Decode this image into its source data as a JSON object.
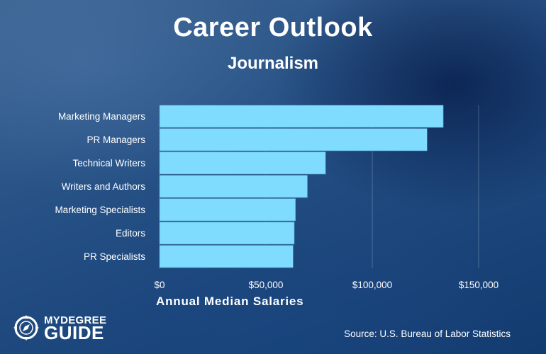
{
  "header": {
    "title": "Career Outlook",
    "subtitle": "Journalism"
  },
  "chart_data": {
    "type": "bar",
    "orientation": "horizontal",
    "title": "Career Outlook",
    "subtitle": "Journalism",
    "xlabel": "Annual Median Salaries",
    "ylabel": "",
    "categories": [
      "Marketing Managers",
      "PR Managers",
      "Technical Writers",
      "Writers and Authors",
      "Marketing Specialists",
      "Editors",
      "PR Specialists"
    ],
    "values": [
      133380,
      125780,
      78060,
      69510,
      63920,
      63350,
      62800
    ],
    "xlim": [
      0,
      150000
    ],
    "ticks": [
      0,
      50000,
      100000,
      150000
    ],
    "tick_labels": [
      "$0",
      "$50,000",
      "$100,000",
      "$150,000"
    ],
    "grid": true,
    "bar_color": "#7fdcff"
  },
  "footer": {
    "logo_top": "MYDEGREE",
    "logo_bottom": "GUIDE",
    "source": "Source: U.S. Bureau of Labor Statistics"
  }
}
